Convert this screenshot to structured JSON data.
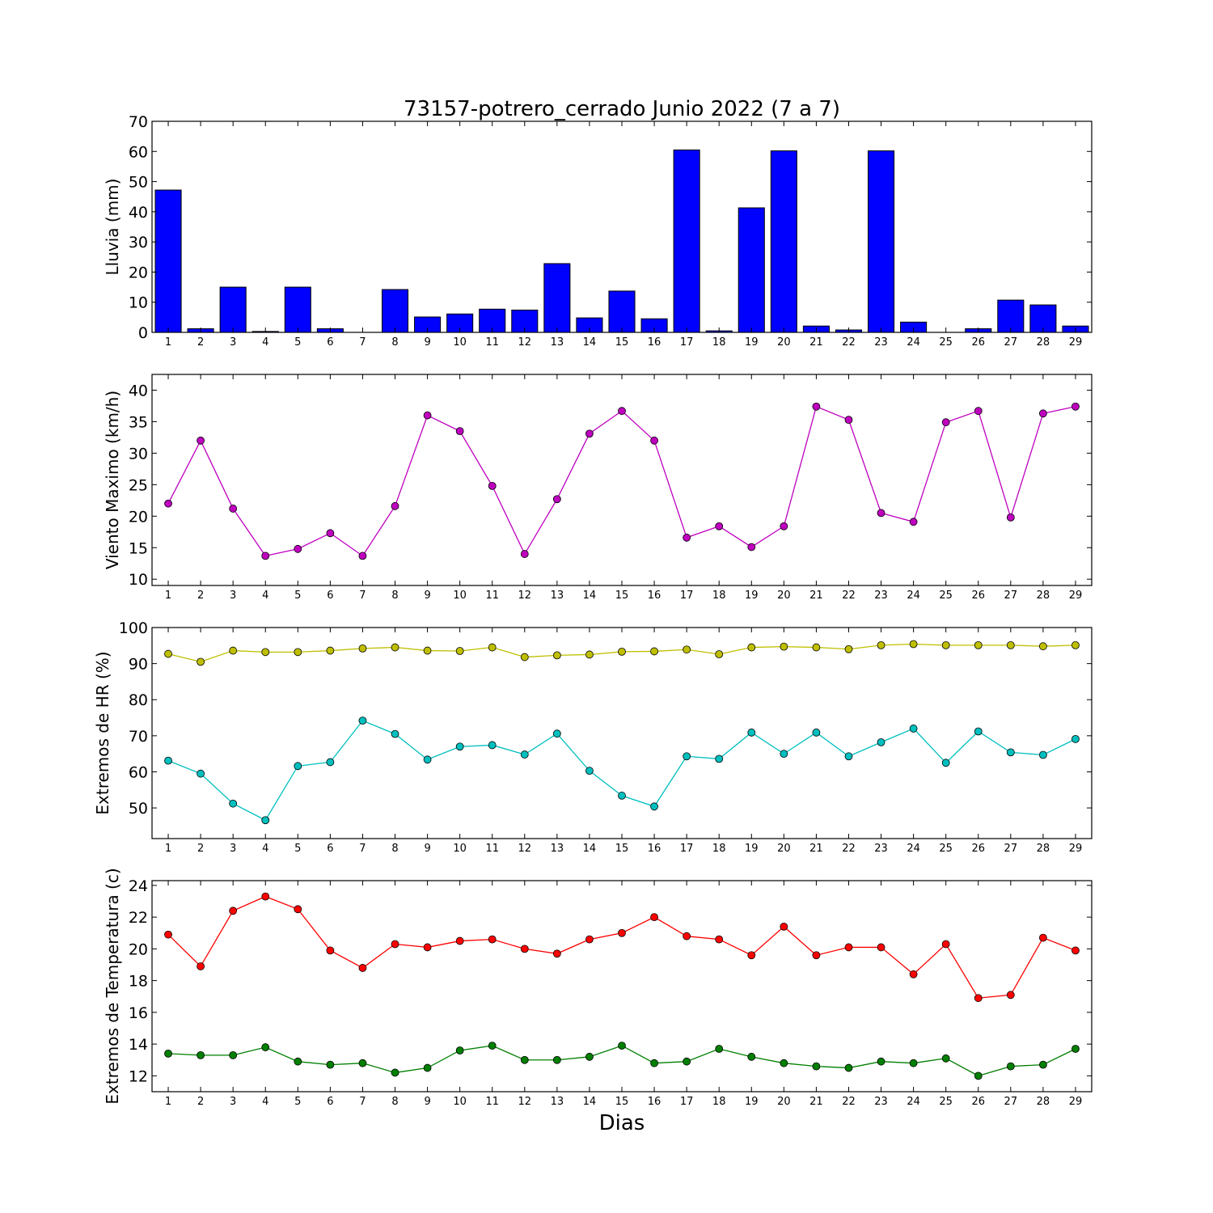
{
  "chart_data": [
    {
      "type": "bar",
      "title": "73157-potrero_cerrado Junio 2022  (7 a 7)",
      "ylabel": "Lluvia (mm)",
      "xlabel": "",
      "categories": [
        "1",
        "2",
        "3",
        "4",
        "5",
        "6",
        "7",
        "8",
        "9",
        "10",
        "11",
        "12",
        "13",
        "14",
        "15",
        "16",
        "17",
        "18",
        "19",
        "20",
        "21",
        "22",
        "23",
        "24",
        "25",
        "26",
        "27",
        "28",
        "29"
      ],
      "values": [
        47.2,
        1.2,
        15.0,
        0.3,
        15.0,
        1.2,
        0.0,
        14.2,
        5.1,
        6.1,
        7.7,
        7.4,
        22.8,
        4.8,
        13.7,
        4.5,
        60.5,
        0.5,
        41.3,
        60.2,
        2.1,
        0.8,
        60.2,
        3.4,
        0.0,
        1.2,
        10.7,
        9.1,
        2.1
      ],
      "ylim": [
        0,
        70
      ],
      "yticks": [
        0,
        10,
        20,
        30,
        40,
        50,
        60,
        70
      ],
      "color": "#0000ff"
    },
    {
      "type": "line",
      "title": "",
      "ylabel": "Viento Maximo (km/h)",
      "xlabel": "",
      "categories": [
        "1",
        "2",
        "3",
        "4",
        "5",
        "6",
        "7",
        "8",
        "9",
        "10",
        "11",
        "12",
        "13",
        "14",
        "15",
        "16",
        "17",
        "18",
        "19",
        "20",
        "21",
        "22",
        "23",
        "24",
        "25",
        "26",
        "27",
        "28",
        "29"
      ],
      "series": [
        {
          "color": "#bf00bf",
          "values": [
            22.0,
            32.0,
            21.2,
            13.7,
            14.8,
            17.3,
            13.7,
            21.6,
            36.0,
            33.5,
            24.8,
            14.0,
            22.7,
            33.1,
            36.7,
            32.0,
            16.6,
            18.4,
            15.1,
            18.4,
            37.4,
            35.3,
            20.5,
            19.1,
            34.9,
            36.7,
            19.8,
            36.3,
            37.4
          ]
        }
      ],
      "ylim": [
        9,
        42.5
      ],
      "yticks": [
        10,
        15,
        20,
        25,
        30,
        35,
        40
      ]
    },
    {
      "type": "line",
      "title": "",
      "ylabel": "Extremos de HR (%)",
      "xlabel": "",
      "categories": [
        "1",
        "2",
        "3",
        "4",
        "5",
        "6",
        "7",
        "8",
        "9",
        "10",
        "11",
        "12",
        "13",
        "14",
        "15",
        "16",
        "17",
        "18",
        "19",
        "20",
        "21",
        "22",
        "23",
        "24",
        "25",
        "26",
        "27",
        "28",
        "29"
      ],
      "series": [
        {
          "color": "#bfbf00",
          "values": [
            92.7,
            90.5,
            93.6,
            93.2,
            93.2,
            93.6,
            94.2,
            94.5,
            93.6,
            93.5,
            94.5,
            91.8,
            92.3,
            92.5,
            93.3,
            93.4,
            93.9,
            92.6,
            94.5,
            94.7,
            94.5,
            94.0,
            95.1,
            95.4,
            95.1,
            95.1,
            95.1,
            94.8,
            95.1
          ]
        },
        {
          "color": "#00bfbf",
          "values": [
            63.1,
            59.5,
            51.2,
            46.6,
            61.6,
            62.7,
            74.2,
            70.5,
            63.4,
            67.0,
            67.4,
            64.8,
            70.6,
            60.3,
            53.4,
            50.4,
            64.3,
            63.6,
            70.9,
            65.0,
            70.9,
            64.3,
            68.2,
            72.0,
            62.5,
            71.2,
            65.4,
            64.7,
            69.1
          ]
        }
      ],
      "ylim": [
        41.5,
        100
      ],
      "yticks": [
        50,
        60,
        70,
        80,
        90,
        100
      ]
    },
    {
      "type": "line",
      "title": "",
      "ylabel": "Extremos de Temperatura (c)",
      "xlabel": "Dias",
      "categories": [
        "1",
        "2",
        "3",
        "4",
        "5",
        "6",
        "7",
        "8",
        "9",
        "10",
        "11",
        "12",
        "13",
        "14",
        "15",
        "16",
        "17",
        "18",
        "19",
        "20",
        "21",
        "22",
        "23",
        "24",
        "25",
        "26",
        "27",
        "28",
        "29"
      ],
      "series": [
        {
          "color": "#ff0000",
          "values": [
            20.9,
            18.9,
            22.4,
            23.3,
            22.5,
            19.9,
            18.8,
            20.3,
            20.1,
            20.5,
            20.6,
            20.0,
            19.7,
            20.6,
            21.0,
            22.0,
            20.8,
            20.6,
            19.6,
            21.4,
            19.6,
            20.1,
            20.1,
            18.4,
            20.3,
            16.9,
            17.1,
            20.7,
            19.9
          ]
        },
        {
          "color": "#007f00",
          "values": [
            13.4,
            13.3,
            13.3,
            13.8,
            12.9,
            12.7,
            12.8,
            12.2,
            12.5,
            13.6,
            13.9,
            13.0,
            13.0,
            13.2,
            13.9,
            12.8,
            12.9,
            13.7,
            13.2,
            12.8,
            12.6,
            12.5,
            12.9,
            12.8,
            13.1,
            12.0,
            12.6,
            12.7,
            13.7
          ]
        }
      ],
      "ylim": [
        11,
        24.3
      ],
      "yticks": [
        12,
        14,
        16,
        18,
        20,
        22,
        24
      ]
    }
  ]
}
